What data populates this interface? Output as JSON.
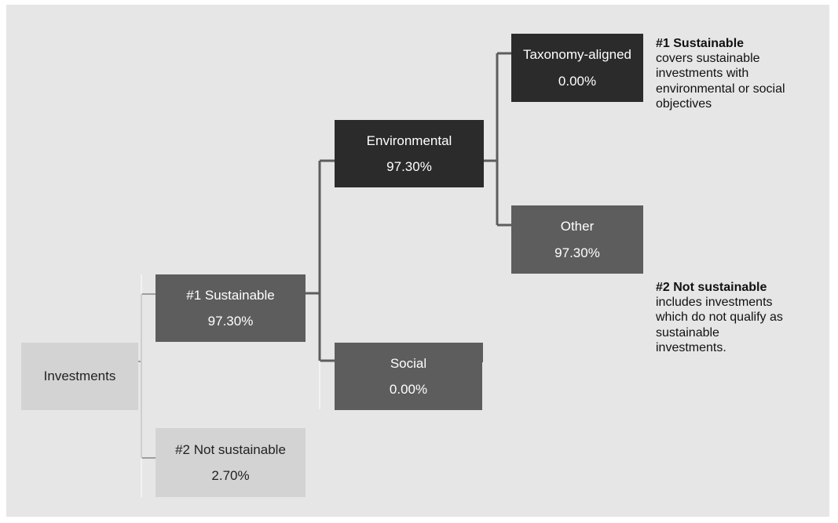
{
  "nodes": {
    "investments": {
      "label": "Investments"
    },
    "sustainable": {
      "label": "#1 Sustainable",
      "value": "97.30%"
    },
    "not_sustainable": {
      "label": "#2 Not sustainable",
      "value": "2.70%"
    },
    "environmental": {
      "label": "Environmental",
      "value": "97.30%"
    },
    "social": {
      "label": "Social",
      "value": "0.00%"
    },
    "taxonomy": {
      "label": "Taxonomy-aligned",
      "value": "0.00%"
    },
    "other": {
      "label": "Other",
      "value": "97.30%"
    }
  },
  "notes": {
    "sustainable": {
      "title": "#1 Sustainable",
      "text": "covers sustainable investments with environmental or social objectives"
    },
    "not_sustainable": {
      "title": "#2 Not sustainable",
      "text": "includes investments which do not qualify as sustainable investments."
    }
  },
  "colors": {
    "panel": "#e6e6e6",
    "light_box": "#d3d3d3",
    "mid_box": "#5d5d5d",
    "dark_box": "#2b2b2b",
    "line_light": "#9e9e9e",
    "line_dark": "#5d5d5d"
  }
}
